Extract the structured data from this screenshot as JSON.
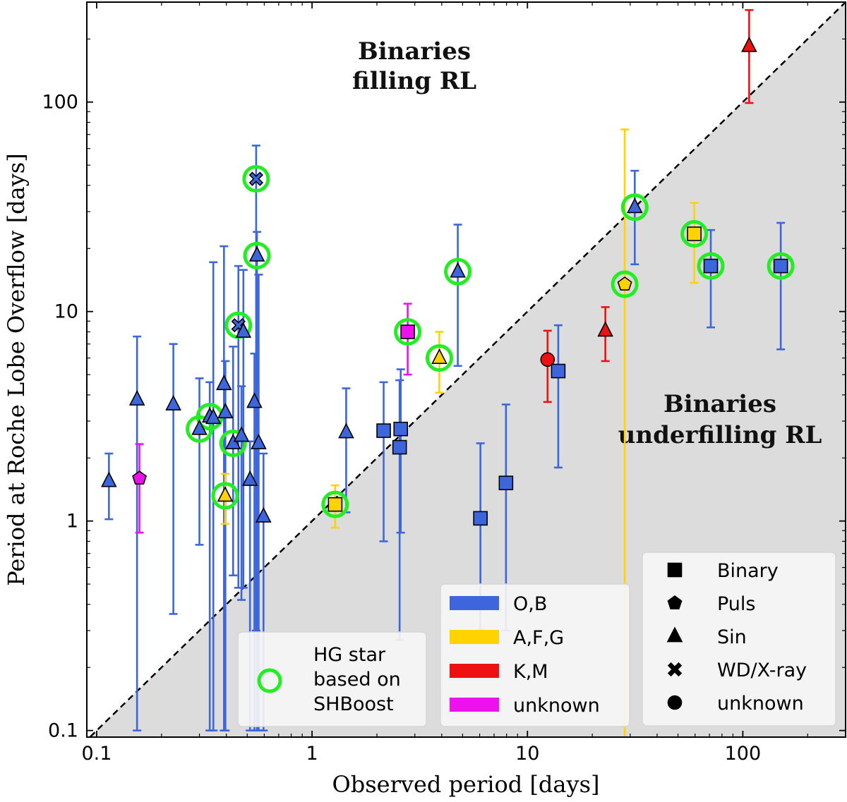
{
  "chart_data": {
    "type": "scatter",
    "scale": {
      "x": "log",
      "y": "log"
    },
    "xlabel": "Observed period [days]",
    "ylabel": "Period at Roche Lobe Overflow [days]",
    "xlim": [
      0.09,
      300
    ],
    "ylim": [
      0.093,
      300
    ],
    "xticks": [
      {
        "value": 0.1,
        "label": "0.1"
      },
      {
        "value": 1,
        "label": "1"
      },
      {
        "value": 10,
        "label": "10"
      },
      {
        "value": 100,
        "label": "100"
      }
    ],
    "yticks": [
      {
        "value": 0.1,
        "label": "0.1"
      },
      {
        "value": 1,
        "label": "1"
      },
      {
        "value": 10,
        "label": "10"
      },
      {
        "value": 100,
        "label": "100"
      }
    ],
    "diagonal": "y = x (dashed)",
    "region_labels": {
      "above": [
        "Binaries",
        "filling RL"
      ],
      "below": [
        "Binaries",
        "underfilling RL"
      ]
    },
    "colors": {
      "O,B": "#3d66dc",
      "A,F,G": "#ffd200",
      "K,M": "#ee1111",
      "unknown": "#ee11ee",
      "hg_ring": "#22ee22",
      "shade": "#dcdcdc"
    },
    "legend_color": {
      "entries": [
        {
          "label": "O,B",
          "color": "#3d66dc"
        },
        {
          "label": "A,F,G",
          "color": "#ffd200"
        },
        {
          "label": "K,M",
          "color": "#ee1111"
        },
        {
          "label": "unknown",
          "color": "#ee11ee"
        }
      ]
    },
    "legend_marker": {
      "entries": [
        {
          "label": "Binary",
          "marker": "square"
        },
        {
          "label": "Puls",
          "marker": "pentagon"
        },
        {
          "label": "Sin",
          "marker": "triangle"
        },
        {
          "label": "WD/X-ray",
          "marker": "x"
        },
        {
          "label": "unknown",
          "marker": "circle"
        }
      ]
    },
    "legend_hg": {
      "lines": [
        "HG star",
        "based on",
        "SHBoost"
      ]
    },
    "points": [
      {
        "x": 0.114,
        "y": 1.55,
        "lo": 1.02,
        "hi": 2.1,
        "cls": "O,B",
        "marker": "triangle",
        "hg": false
      },
      {
        "x": 0.154,
        "y": 3.8,
        "lo": 0.1,
        "hi": 7.6,
        "cls": "O,B",
        "marker": "triangle",
        "hg": false
      },
      {
        "x": 0.158,
        "y": 1.6,
        "lo": 0.88,
        "hi": 2.33,
        "cls": "unknown",
        "marker": "pentagon",
        "hg": false
      },
      {
        "x": 0.227,
        "y": 3.6,
        "lo": 0.36,
        "hi": 7.0,
        "cls": "O,B",
        "marker": "triangle",
        "hg": false
      },
      {
        "x": 0.3,
        "y": 2.75,
        "lo": 0.77,
        "hi": 4.8,
        "cls": "O,B",
        "marker": "triangle",
        "hg": true
      },
      {
        "x": 0.335,
        "y": 3.15,
        "lo": 0.1,
        "hi": 4.6,
        "cls": "O,B",
        "marker": "triangle",
        "hg": true
      },
      {
        "x": 0.348,
        "y": 3.1,
        "lo": 0.1,
        "hi": 17.2,
        "cls": "O,B",
        "marker": "triangle",
        "hg": false
      },
      {
        "x": 0.39,
        "y": 4.5,
        "lo": 0.1,
        "hi": 20.5,
        "cls": "O,B",
        "marker": "triangle",
        "hg": false
      },
      {
        "x": 0.396,
        "y": 3.3,
        "lo": 0.1,
        "hi": 5.8,
        "cls": "O,B",
        "marker": "triangle",
        "hg": false
      },
      {
        "x": 0.395,
        "y": 1.32,
        "lo": 0.97,
        "hi": 1.68,
        "cls": "A,F,G",
        "marker": "triangle",
        "hg": true
      },
      {
        "x": 0.43,
        "y": 2.35,
        "lo": 0.55,
        "hi": 6.8,
        "cls": "O,B",
        "marker": "triangle",
        "hg": true
      },
      {
        "x": 0.455,
        "y": 8.6,
        "lo": 0.48,
        "hi": 16.5,
        "cls": "O,B",
        "marker": "x",
        "hg": true
      },
      {
        "x": 0.47,
        "y": 2.55,
        "lo": 0.42,
        "hi": 4.4,
        "cls": "O,B",
        "marker": "triangle",
        "hg": false
      },
      {
        "x": 0.48,
        "y": 8.0,
        "lo": 0.48,
        "hi": 15.8,
        "cls": "O,B",
        "marker": "triangle",
        "hg": false
      },
      {
        "x": 0.515,
        "y": 1.57,
        "lo": 0.1,
        "hi": 2.4,
        "cls": "O,B",
        "marker": "triangle",
        "hg": false
      },
      {
        "x": 0.54,
        "y": 3.7,
        "lo": 0.1,
        "hi": 6.3,
        "cls": "O,B",
        "marker": "triangle",
        "hg": false
      },
      {
        "x": 0.55,
        "y": 43.0,
        "lo": 0.3,
        "hi": 62.0,
        "cls": "O,B",
        "marker": "x",
        "hg": true
      },
      {
        "x": 0.555,
        "y": 18.5,
        "lo": 0.1,
        "hi": 24.0,
        "cls": "O,B",
        "marker": "triangle",
        "hg": true
      },
      {
        "x": 0.565,
        "y": 2.35,
        "lo": 0.1,
        "hi": 15.0,
        "cls": "O,B",
        "marker": "triangle",
        "hg": false
      },
      {
        "x": 0.595,
        "y": 1.05,
        "lo": 0.1,
        "hi": 2.1,
        "cls": "O,B",
        "marker": "triangle",
        "hg": false
      },
      {
        "x": 1.28,
        "y": 1.2,
        "lo": 0.93,
        "hi": 1.48,
        "cls": "A,F,G",
        "marker": "square",
        "hg": true
      },
      {
        "x": 1.44,
        "y": 2.65,
        "lo": 1.1,
        "hi": 4.3,
        "cls": "O,B",
        "marker": "triangle",
        "hg": false
      },
      {
        "x": 2.15,
        "y": 2.7,
        "lo": 0.8,
        "hi": 4.6,
        "cls": "O,B",
        "marker": "square",
        "hg": false
      },
      {
        "x": 2.55,
        "y": 2.25,
        "lo": 0.27,
        "hi": 4.7,
        "cls": "O,B",
        "marker": "square",
        "hg": false
      },
      {
        "x": 2.58,
        "y": 2.75,
        "lo": 0.88,
        "hi": 5.3,
        "cls": "O,B",
        "marker": "square",
        "hg": false
      },
      {
        "x": 2.78,
        "y": 8.0,
        "lo": 5.0,
        "hi": 10.9,
        "cls": "unknown",
        "marker": "square",
        "hg": true
      },
      {
        "x": 3.9,
        "y": 6.0,
        "lo": 4.1,
        "hi": 8.0,
        "cls": "A,F,G",
        "marker": "triangle",
        "hg": true
      },
      {
        "x": 4.75,
        "y": 15.5,
        "lo": 5.5,
        "hi": 26.0,
        "cls": "O,B",
        "marker": "triangle",
        "hg": true
      },
      {
        "x": 6.05,
        "y": 1.03,
        "lo": 0.3,
        "hi": 2.35,
        "cls": "O,B",
        "marker": "square",
        "hg": false
      },
      {
        "x": 7.95,
        "y": 1.52,
        "lo": 0.3,
        "hi": 3.6,
        "cls": "O,B",
        "marker": "square",
        "hg": false
      },
      {
        "x": 12.4,
        "y": 5.9,
        "lo": 3.7,
        "hi": 8.1,
        "cls": "K,M",
        "marker": "circle",
        "hg": false
      },
      {
        "x": 13.9,
        "y": 5.2,
        "lo": 1.8,
        "hi": 8.6,
        "cls": "O,B",
        "marker": "square",
        "hg": false
      },
      {
        "x": 23.0,
        "y": 8.1,
        "lo": 5.8,
        "hi": 10.5,
        "cls": "K,M",
        "marker": "triangle",
        "hg": false
      },
      {
        "x": 28.3,
        "y": 13.5,
        "lo": 0.09,
        "hi": 74.0,
        "cls": "A,F,G",
        "marker": "pentagon",
        "hg": true
      },
      {
        "x": 31.5,
        "y": 31.5,
        "lo": 16.8,
        "hi": 47.0,
        "cls": "O,B",
        "marker": "triangle",
        "hg": true
      },
      {
        "x": 59.5,
        "y": 23.5,
        "lo": 13.7,
        "hi": 33.0,
        "cls": "A,F,G",
        "marker": "square",
        "hg": true
      },
      {
        "x": 71.0,
        "y": 16.5,
        "lo": 8.4,
        "hi": 24.5,
        "cls": "O,B",
        "marker": "square",
        "hg": true
      },
      {
        "x": 107.0,
        "y": 185.0,
        "lo": 99.0,
        "hi": 275.0,
        "cls": "K,M",
        "marker": "triangle",
        "hg": false
      },
      {
        "x": 150.0,
        "y": 16.5,
        "lo": 6.6,
        "hi": 26.5,
        "cls": "O,B",
        "marker": "square",
        "hg": true
      }
    ]
  }
}
